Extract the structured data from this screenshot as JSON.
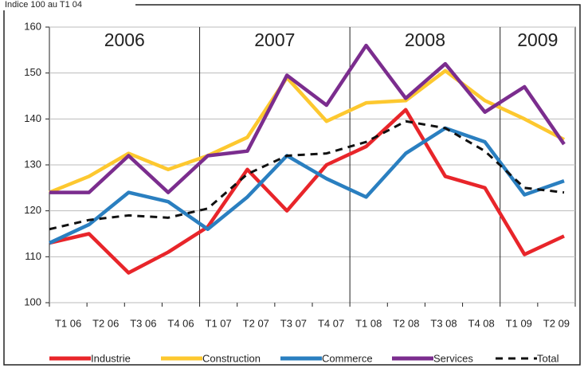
{
  "chart_data": {
    "type": "line",
    "title": "Indice 100 au T1 04",
    "categories": [
      "T1 06",
      "T2 06",
      "T3 06",
      "T4 06",
      "T1 07",
      "T2 07",
      "T3 07",
      "T4 07",
      "T1 08",
      "T2 08",
      "T3 08",
      "T4 08",
      "T1 09",
      "T2 09"
    ],
    "year_labels": [
      "2006",
      "2007",
      "2008",
      "2009"
    ],
    "series": [
      {
        "name": "Industrie",
        "color": "#e8252a",
        "values": [
          113,
          115,
          106.5,
          111,
          116.5,
          129,
          120,
          130,
          134,
          142,
          127.5,
          125,
          110.5,
          114.5
        ]
      },
      {
        "name": "Construction",
        "color": "#fdc82f",
        "values": [
          124,
          127.5,
          132.5,
          129,
          132,
          136,
          149,
          139.5,
          143.5,
          144,
          150.5,
          144,
          140,
          135.5
        ]
      },
      {
        "name": "Commerce",
        "color": "#2a7fc0",
        "values": [
          113,
          117,
          124,
          122,
          116,
          123,
          132,
          127,
          123,
          132.5,
          138,
          135,
          123.5,
          126.5
        ]
      },
      {
        "name": "Services",
        "color": "#7b2d8e",
        "values": [
          124,
          124,
          132,
          124,
          132,
          133,
          149.5,
          143,
          156,
          144.5,
          152,
          141.5,
          147,
          134.5
        ]
      },
      {
        "name": "Total",
        "color": "#111111",
        "dashed": true,
        "values": [
          116,
          118,
          119,
          118.5,
          120.5,
          128,
          132,
          132.5,
          135,
          139.5,
          138,
          133,
          125,
          124
        ]
      }
    ],
    "ylim": [
      100,
      160
    ],
    "yticks": [
      100,
      110,
      120,
      130,
      140,
      150,
      160
    ],
    "grid": true
  }
}
